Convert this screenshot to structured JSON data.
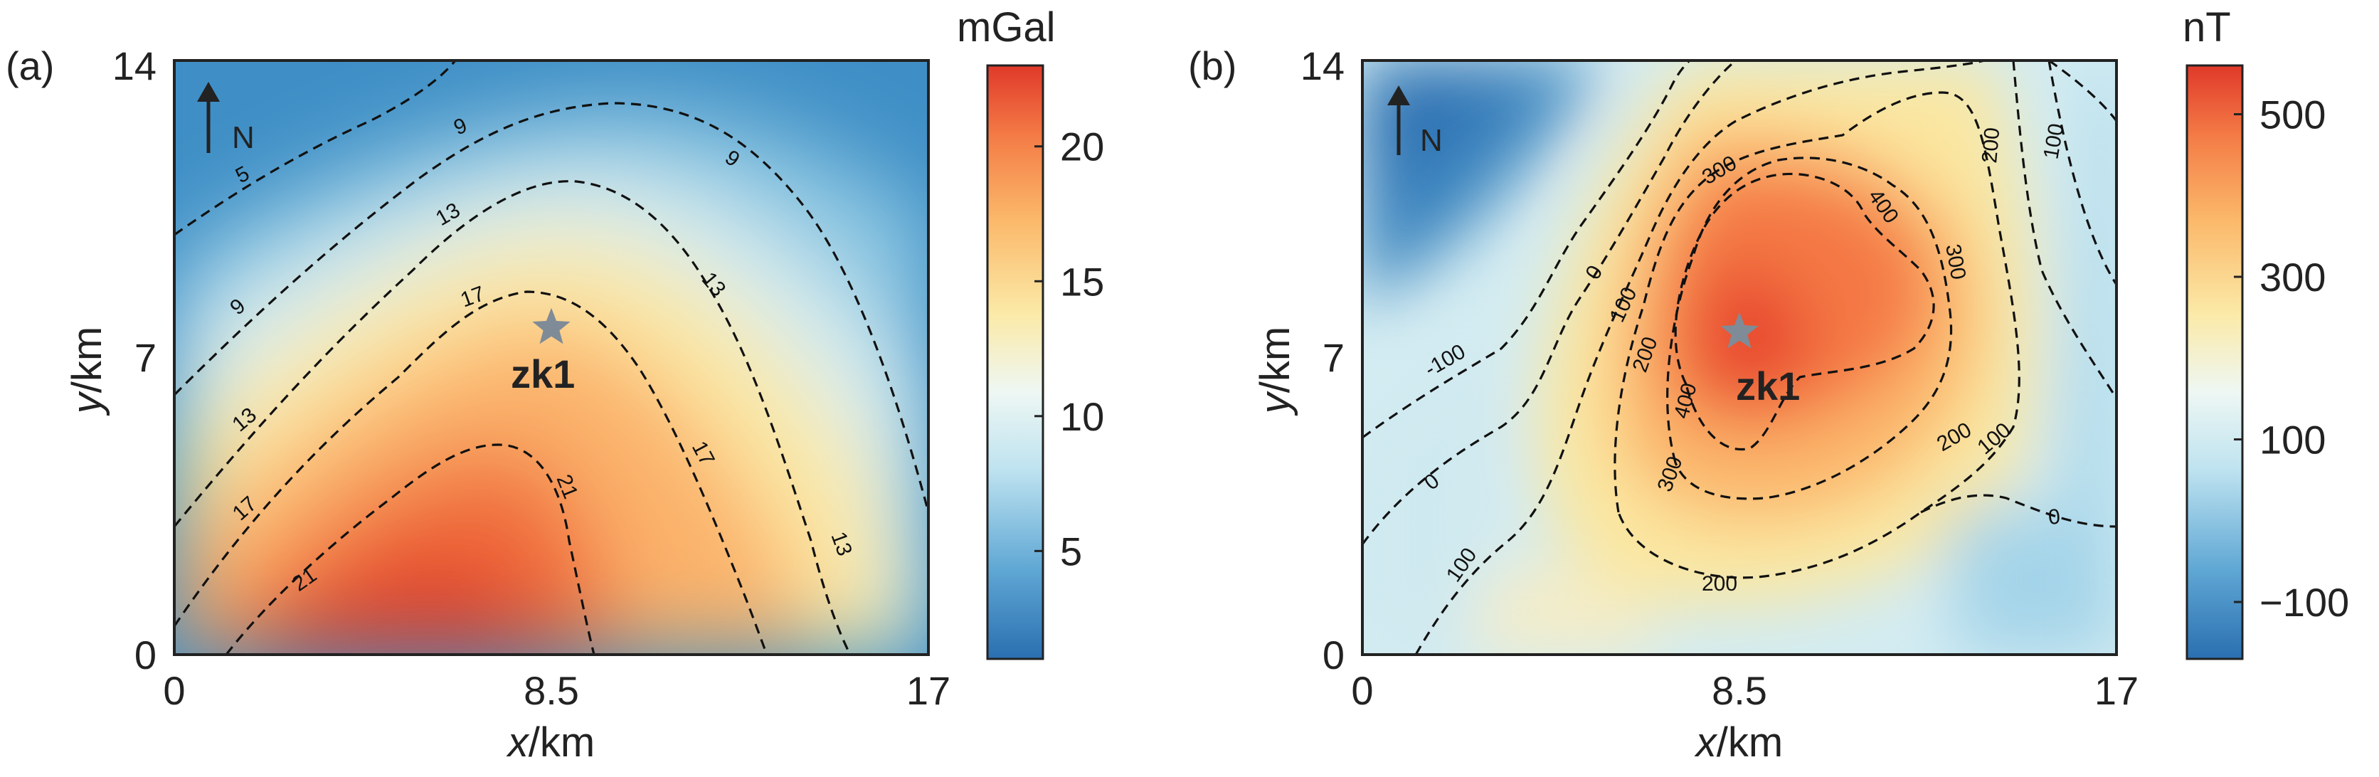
{
  "chart_data": [
    {
      "type": "heatmap",
      "panel_label": "(a)",
      "xlabel_var": "x",
      "xlabel_unit": "/km",
      "ylabel_var": "y",
      "ylabel_unit": "/km",
      "xlim": [
        0,
        17
      ],
      "ylim": [
        0,
        14
      ],
      "xticks": [
        "0",
        "8.5",
        "17"
      ],
      "yticks": [
        "0",
        "7",
        "14"
      ],
      "north_label": "N",
      "well": {
        "name": "zk1",
        "x": 8.5,
        "y": 7.7
      },
      "colorbar": {
        "unit": "mGal",
        "range": [
          1,
          23
        ],
        "ticks": [
          "5",
          "10",
          "15",
          "20"
        ]
      },
      "contour_levels": [
        "5",
        "9",
        "13",
        "17",
        "21"
      ]
    },
    {
      "type": "heatmap",
      "panel_label": "(b)",
      "xlabel_var": "x",
      "xlabel_unit": "/km",
      "ylabel_var": "y",
      "ylabel_unit": "/km",
      "xlim": [
        0,
        17
      ],
      "ylim": [
        0,
        14
      ],
      "xticks": [
        "0",
        "8.5",
        "17"
      ],
      "yticks": [
        "0",
        "7",
        "14"
      ],
      "north_label": "N",
      "well": {
        "name": "zk1",
        "x": 8.5,
        "y": 7.6
      },
      "colorbar": {
        "unit": "nT",
        "range": [
          -170,
          560
        ],
        "ticks": [
          "500",
          "300",
          "100",
          "−100"
        ]
      },
      "contour_levels": [
        "-100",
        "0",
        "100",
        "200",
        "300",
        "400"
      ]
    }
  ],
  "colors": {
    "low": "#2a78b5",
    "mid": "#fdf2b0",
    "high": "#e8402a",
    "star": "#7f8b97"
  }
}
